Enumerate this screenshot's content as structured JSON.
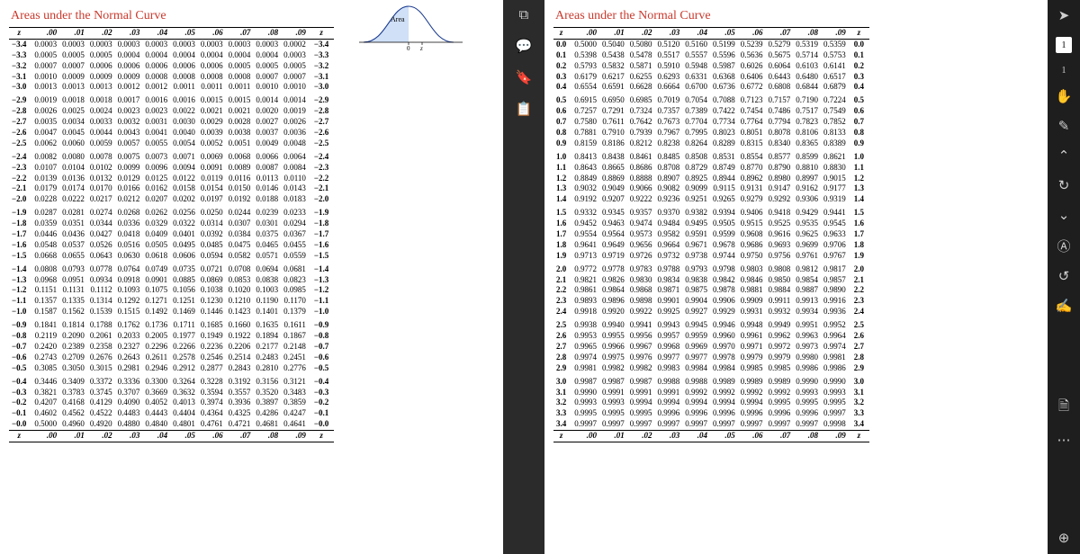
{
  "title": "Areas under the Normal Curve",
  "curve_label": "Area",
  "headers": [
    ".00",
    ".01",
    ".02",
    ".03",
    ".04",
    ".05",
    ".06",
    ".07",
    ".08",
    ".09"
  ],
  "neg": [
    {
      "z": "−3.4",
      "v": [
        "0.0003",
        "0.0003",
        "0.0003",
        "0.0003",
        "0.0003",
        "0.0003",
        "0.0003",
        "0.0003",
        "0.0003",
        "0.0002"
      ]
    },
    {
      "z": "−3.3",
      "v": [
        "0.0005",
        "0.0005",
        "0.0005",
        "0.0004",
        "0.0004",
        "0.0004",
        "0.0004",
        "0.0004",
        "0.0004",
        "0.0003"
      ]
    },
    {
      "z": "−3.2",
      "v": [
        "0.0007",
        "0.0007",
        "0.0006",
        "0.0006",
        "0.0006",
        "0.0006",
        "0.0006",
        "0.0005",
        "0.0005",
        "0.0005"
      ]
    },
    {
      "z": "−3.1",
      "v": [
        "0.0010",
        "0.0009",
        "0.0009",
        "0.0009",
        "0.0008",
        "0.0008",
        "0.0008",
        "0.0008",
        "0.0007",
        "0.0007"
      ]
    },
    {
      "z": "−3.0",
      "v": [
        "0.0013",
        "0.0013",
        "0.0013",
        "0.0012",
        "0.0012",
        "0.0011",
        "0.0011",
        "0.0011",
        "0.0010",
        "0.0010"
      ]
    },
    {
      "z": "−2.9",
      "v": [
        "0.0019",
        "0.0018",
        "0.0018",
        "0.0017",
        "0.0016",
        "0.0016",
        "0.0015",
        "0.0015",
        "0.0014",
        "0.0014"
      ],
      "sep": true
    },
    {
      "z": "−2.8",
      "v": [
        "0.0026",
        "0.0025",
        "0.0024",
        "0.0023",
        "0.0023",
        "0.0022",
        "0.0021",
        "0.0021",
        "0.0020",
        "0.0019"
      ]
    },
    {
      "z": "−2.7",
      "v": [
        "0.0035",
        "0.0034",
        "0.0033",
        "0.0032",
        "0.0031",
        "0.0030",
        "0.0029",
        "0.0028",
        "0.0027",
        "0.0026"
      ]
    },
    {
      "z": "−2.6",
      "v": [
        "0.0047",
        "0.0045",
        "0.0044",
        "0.0043",
        "0.0041",
        "0.0040",
        "0.0039",
        "0.0038",
        "0.0037",
        "0.0036"
      ]
    },
    {
      "z": "−2.5",
      "v": [
        "0.0062",
        "0.0060",
        "0.0059",
        "0.0057",
        "0.0055",
        "0.0054",
        "0.0052",
        "0.0051",
        "0.0049",
        "0.0048"
      ]
    },
    {
      "z": "−2.4",
      "v": [
        "0.0082",
        "0.0080",
        "0.0078",
        "0.0075",
        "0.0073",
        "0.0071",
        "0.0069",
        "0.0068",
        "0.0066",
        "0.0064"
      ],
      "sep": true
    },
    {
      "z": "−2.3",
      "v": [
        "0.0107",
        "0.0104",
        "0.0102",
        "0.0099",
        "0.0096",
        "0.0094",
        "0.0091",
        "0.0089",
        "0.0087",
        "0.0084"
      ]
    },
    {
      "z": "−2.2",
      "v": [
        "0.0139",
        "0.0136",
        "0.0132",
        "0.0129",
        "0.0125",
        "0.0122",
        "0.0119",
        "0.0116",
        "0.0113",
        "0.0110"
      ]
    },
    {
      "z": "−2.1",
      "v": [
        "0.0179",
        "0.0174",
        "0.0170",
        "0.0166",
        "0.0162",
        "0.0158",
        "0.0154",
        "0.0150",
        "0.0146",
        "0.0143"
      ]
    },
    {
      "z": "−2.0",
      "v": [
        "0.0228",
        "0.0222",
        "0.0217",
        "0.0212",
        "0.0207",
        "0.0202",
        "0.0197",
        "0.0192",
        "0.0188",
        "0.0183"
      ]
    },
    {
      "z": "−1.9",
      "v": [
        "0.0287",
        "0.0281",
        "0.0274",
        "0.0268",
        "0.0262",
        "0.0256",
        "0.0250",
        "0.0244",
        "0.0239",
        "0.0233"
      ],
      "sep": true
    },
    {
      "z": "−1.8",
      "v": [
        "0.0359",
        "0.0351",
        "0.0344",
        "0.0336",
        "0.0329",
        "0.0322",
        "0.0314",
        "0.0307",
        "0.0301",
        "0.0294"
      ]
    },
    {
      "z": "−1.7",
      "v": [
        "0.0446",
        "0.0436",
        "0.0427",
        "0.0418",
        "0.0409",
        "0.0401",
        "0.0392",
        "0.0384",
        "0.0375",
        "0.0367"
      ]
    },
    {
      "z": "−1.6",
      "v": [
        "0.0548",
        "0.0537",
        "0.0526",
        "0.0516",
        "0.0505",
        "0.0495",
        "0.0485",
        "0.0475",
        "0.0465",
        "0.0455"
      ]
    },
    {
      "z": "−1.5",
      "v": [
        "0.0668",
        "0.0655",
        "0.0643",
        "0.0630",
        "0.0618",
        "0.0606",
        "0.0594",
        "0.0582",
        "0.0571",
        "0.0559"
      ]
    },
    {
      "z": "−1.4",
      "v": [
        "0.0808",
        "0.0793",
        "0.0778",
        "0.0764",
        "0.0749",
        "0.0735",
        "0.0721",
        "0.0708",
        "0.0694",
        "0.0681"
      ],
      "sep": true
    },
    {
      "z": "−1.3",
      "v": [
        "0.0968",
        "0.0951",
        "0.0934",
        "0.0918",
        "0.0901",
        "0.0885",
        "0.0869",
        "0.0853",
        "0.0838",
        "0.0823"
      ]
    },
    {
      "z": "−1.2",
      "v": [
        "0.1151",
        "0.1131",
        "0.1112",
        "0.1093",
        "0.1075",
        "0.1056",
        "0.1038",
        "0.1020",
        "0.1003",
        "0.0985"
      ]
    },
    {
      "z": "−1.1",
      "v": [
        "0.1357",
        "0.1335",
        "0.1314",
        "0.1292",
        "0.1271",
        "0.1251",
        "0.1230",
        "0.1210",
        "0.1190",
        "0.1170"
      ]
    },
    {
      "z": "−1.0",
      "v": [
        "0.1587",
        "0.1562",
        "0.1539",
        "0.1515",
        "0.1492",
        "0.1469",
        "0.1446",
        "0.1423",
        "0.1401",
        "0.1379"
      ]
    },
    {
      "z": "−0.9",
      "v": [
        "0.1841",
        "0.1814",
        "0.1788",
        "0.1762",
        "0.1736",
        "0.1711",
        "0.1685",
        "0.1660",
        "0.1635",
        "0.1611"
      ],
      "sep": true
    },
    {
      "z": "−0.8",
      "v": [
        "0.2119",
        "0.2090",
        "0.2061",
        "0.2033",
        "0.2005",
        "0.1977",
        "0.1949",
        "0.1922",
        "0.1894",
        "0.1867"
      ]
    },
    {
      "z": "−0.7",
      "v": [
        "0.2420",
        "0.2389",
        "0.2358",
        "0.2327",
        "0.2296",
        "0.2266",
        "0.2236",
        "0.2206",
        "0.2177",
        "0.2148"
      ]
    },
    {
      "z": "−0.6",
      "v": [
        "0.2743",
        "0.2709",
        "0.2676",
        "0.2643",
        "0.2611",
        "0.2578",
        "0.2546",
        "0.2514",
        "0.2483",
        "0.2451"
      ]
    },
    {
      "z": "−0.5",
      "v": [
        "0.3085",
        "0.3050",
        "0.3015",
        "0.2981",
        "0.2946",
        "0.2912",
        "0.2877",
        "0.2843",
        "0.2810",
        "0.2776"
      ]
    },
    {
      "z": "−0.4",
      "v": [
        "0.3446",
        "0.3409",
        "0.3372",
        "0.3336",
        "0.3300",
        "0.3264",
        "0.3228",
        "0.3192",
        "0.3156",
        "0.3121"
      ],
      "sep": true
    },
    {
      "z": "−0.3",
      "v": [
        "0.3821",
        "0.3783",
        "0.3745",
        "0.3707",
        "0.3669",
        "0.3632",
        "0.3594",
        "0.3557",
        "0.3520",
        "0.3483"
      ]
    },
    {
      "z": "−0.2",
      "v": [
        "0.4207",
        "0.4168",
        "0.4129",
        "0.4090",
        "0.4052",
        "0.4013",
        "0.3974",
        "0.3936",
        "0.3897",
        "0.3859"
      ]
    },
    {
      "z": "−0.1",
      "v": [
        "0.4602",
        "0.4562",
        "0.4522",
        "0.4483",
        "0.4443",
        "0.4404",
        "0.4364",
        "0.4325",
        "0.4286",
        "0.4247"
      ]
    },
    {
      "z": "−0.0",
      "v": [
        "0.5000",
        "0.4960",
        "0.4920",
        "0.4880",
        "0.4840",
        "0.4801",
        "0.4761",
        "0.4721",
        "0.4681",
        "0.4641"
      ]
    }
  ],
  "pos": [
    {
      "z": "0.0",
      "v": [
        "0.5000",
        "0.5040",
        "0.5080",
        "0.5120",
        "0.5160",
        "0.5199",
        "0.5239",
        "0.5279",
        "0.5319",
        "0.5359"
      ]
    },
    {
      "z": "0.1",
      "v": [
        "0.5398",
        "0.5438",
        "0.5478",
        "0.5517",
        "0.5557",
        "0.5596",
        "0.5636",
        "0.5675",
        "0.5714",
        "0.5753"
      ]
    },
    {
      "z": "0.2",
      "v": [
        "0.5793",
        "0.5832",
        "0.5871",
        "0.5910",
        "0.5948",
        "0.5987",
        "0.6026",
        "0.6064",
        "0.6103",
        "0.6141"
      ]
    },
    {
      "z": "0.3",
      "v": [
        "0.6179",
        "0.6217",
        "0.6255",
        "0.6293",
        "0.6331",
        "0.6368",
        "0.6406",
        "0.6443",
        "0.6480",
        "0.6517"
      ]
    },
    {
      "z": "0.4",
      "v": [
        "0.6554",
        "0.6591",
        "0.6628",
        "0.6664",
        "0.6700",
        "0.6736",
        "0.6772",
        "0.6808",
        "0.6844",
        "0.6879"
      ]
    },
    {
      "z": "0.5",
      "v": [
        "0.6915",
        "0.6950",
        "0.6985",
        "0.7019",
        "0.7054",
        "0.7088",
        "0.7123",
        "0.7157",
        "0.7190",
        "0.7224"
      ],
      "sep": true
    },
    {
      "z": "0.6",
      "v": [
        "0.7257",
        "0.7291",
        "0.7324",
        "0.7357",
        "0.7389",
        "0.7422",
        "0.7454",
        "0.7486",
        "0.7517",
        "0.7549"
      ]
    },
    {
      "z": "0.7",
      "v": [
        "0.7580",
        "0.7611",
        "0.7642",
        "0.7673",
        "0.7704",
        "0.7734",
        "0.7764",
        "0.7794",
        "0.7823",
        "0.7852"
      ]
    },
    {
      "z": "0.8",
      "v": [
        "0.7881",
        "0.7910",
        "0.7939",
        "0.7967",
        "0.7995",
        "0.8023",
        "0.8051",
        "0.8078",
        "0.8106",
        "0.8133"
      ]
    },
    {
      "z": "0.9",
      "v": [
        "0.8159",
        "0.8186",
        "0.8212",
        "0.8238",
        "0.8264",
        "0.8289",
        "0.8315",
        "0.8340",
        "0.8365",
        "0.8389"
      ]
    },
    {
      "z": "1.0",
      "v": [
        "0.8413",
        "0.8438",
        "0.8461",
        "0.8485",
        "0.8508",
        "0.8531",
        "0.8554",
        "0.8577",
        "0.8599",
        "0.8621"
      ],
      "sep": true
    },
    {
      "z": "1.1",
      "v": [
        "0.8643",
        "0.8665",
        "0.8686",
        "0.8708",
        "0.8729",
        "0.8749",
        "0.8770",
        "0.8790",
        "0.8810",
        "0.8830"
      ]
    },
    {
      "z": "1.2",
      "v": [
        "0.8849",
        "0.8869",
        "0.8888",
        "0.8907",
        "0.8925",
        "0.8944",
        "0.8962",
        "0.8980",
        "0.8997",
        "0.9015"
      ]
    },
    {
      "z": "1.3",
      "v": [
        "0.9032",
        "0.9049",
        "0.9066",
        "0.9082",
        "0.9099",
        "0.9115",
        "0.9131",
        "0.9147",
        "0.9162",
        "0.9177"
      ]
    },
    {
      "z": "1.4",
      "v": [
        "0.9192",
        "0.9207",
        "0.9222",
        "0.9236",
        "0.9251",
        "0.9265",
        "0.9279",
        "0.9292",
        "0.9306",
        "0.9319"
      ]
    },
    {
      "z": "1.5",
      "v": [
        "0.9332",
        "0.9345",
        "0.9357",
        "0.9370",
        "0.9382",
        "0.9394",
        "0.9406",
        "0.9418",
        "0.9429",
        "0.9441"
      ],
      "sep": true
    },
    {
      "z": "1.6",
      "v": [
        "0.9452",
        "0.9463",
        "0.9474",
        "0.9484",
        "0.9495",
        "0.9505",
        "0.9515",
        "0.9525",
        "0.9535",
        "0.9545"
      ]
    },
    {
      "z": "1.7",
      "v": [
        "0.9554",
        "0.9564",
        "0.9573",
        "0.9582",
        "0.9591",
        "0.9599",
        "0.9608",
        "0.9616",
        "0.9625",
        "0.9633"
      ]
    },
    {
      "z": "1.8",
      "v": [
        "0.9641",
        "0.9649",
        "0.9656",
        "0.9664",
        "0.9671",
        "0.9678",
        "0.9686",
        "0.9693",
        "0.9699",
        "0.9706"
      ]
    },
    {
      "z": "1.9",
      "v": [
        "0.9713",
        "0.9719",
        "0.9726",
        "0.9732",
        "0.9738",
        "0.9744",
        "0.9750",
        "0.9756",
        "0.9761",
        "0.9767"
      ]
    },
    {
      "z": "2.0",
      "v": [
        "0.9772",
        "0.9778",
        "0.9783",
        "0.9788",
        "0.9793",
        "0.9798",
        "0.9803",
        "0.9808",
        "0.9812",
        "0.9817"
      ],
      "sep": true
    },
    {
      "z": "2.1",
      "v": [
        "0.9821",
        "0.9826",
        "0.9830",
        "0.9834",
        "0.9838",
        "0.9842",
        "0.9846",
        "0.9850",
        "0.9854",
        "0.9857"
      ]
    },
    {
      "z": "2.2",
      "v": [
        "0.9861",
        "0.9864",
        "0.9868",
        "0.9871",
        "0.9875",
        "0.9878",
        "0.9881",
        "0.9884",
        "0.9887",
        "0.9890"
      ]
    },
    {
      "z": "2.3",
      "v": [
        "0.9893",
        "0.9896",
        "0.9898",
        "0.9901",
        "0.9904",
        "0.9906",
        "0.9909",
        "0.9911",
        "0.9913",
        "0.9916"
      ]
    },
    {
      "z": "2.4",
      "v": [
        "0.9918",
        "0.9920",
        "0.9922",
        "0.9925",
        "0.9927",
        "0.9929",
        "0.9931",
        "0.9932",
        "0.9934",
        "0.9936"
      ]
    },
    {
      "z": "2.5",
      "v": [
        "0.9938",
        "0.9940",
        "0.9941",
        "0.9943",
        "0.9945",
        "0.9946",
        "0.9948",
        "0.9949",
        "0.9951",
        "0.9952"
      ],
      "sep": true
    },
    {
      "z": "2.6",
      "v": [
        "0.9953",
        "0.9955",
        "0.9956",
        "0.9957",
        "0.9959",
        "0.9960",
        "0.9961",
        "0.9962",
        "0.9963",
        "0.9964"
      ]
    },
    {
      "z": "2.7",
      "v": [
        "0.9965",
        "0.9966",
        "0.9967",
        "0.9968",
        "0.9969",
        "0.9970",
        "0.9971",
        "0.9972",
        "0.9973",
        "0.9974"
      ]
    },
    {
      "z": "2.8",
      "v": [
        "0.9974",
        "0.9975",
        "0.9976",
        "0.9977",
        "0.9977",
        "0.9978",
        "0.9979",
        "0.9979",
        "0.9980",
        "0.9981"
      ]
    },
    {
      "z": "2.9",
      "v": [
        "0.9981",
        "0.9982",
        "0.9982",
        "0.9983",
        "0.9984",
        "0.9984",
        "0.9985",
        "0.9985",
        "0.9986",
        "0.9986"
      ]
    },
    {
      "z": "3.0",
      "v": [
        "0.9987",
        "0.9987",
        "0.9987",
        "0.9988",
        "0.9988",
        "0.9989",
        "0.9989",
        "0.9989",
        "0.9990",
        "0.9990"
      ],
      "sep": true
    },
    {
      "z": "3.1",
      "v": [
        "0.9990",
        "0.9991",
        "0.9991",
        "0.9991",
        "0.9992",
        "0.9992",
        "0.9992",
        "0.9992",
        "0.9993",
        "0.9993"
      ]
    },
    {
      "z": "3.2",
      "v": [
        "0.9993",
        "0.9993",
        "0.9994",
        "0.9994",
        "0.9994",
        "0.9994",
        "0.9994",
        "0.9995",
        "0.9995",
        "0.9995"
      ]
    },
    {
      "z": "3.3",
      "v": [
        "0.9995",
        "0.9995",
        "0.9995",
        "0.9996",
        "0.9996",
        "0.9996",
        "0.9996",
        "0.9996",
        "0.9996",
        "0.9997"
      ]
    },
    {
      "z": "3.4",
      "v": [
        "0.9997",
        "0.9997",
        "0.9997",
        "0.9997",
        "0.9997",
        "0.9997",
        "0.9997",
        "0.9997",
        "0.9997",
        "0.9998"
      ]
    }
  ],
  "toolbar": {
    "page_badge_1": "1",
    "page_badge_2": "1"
  }
}
